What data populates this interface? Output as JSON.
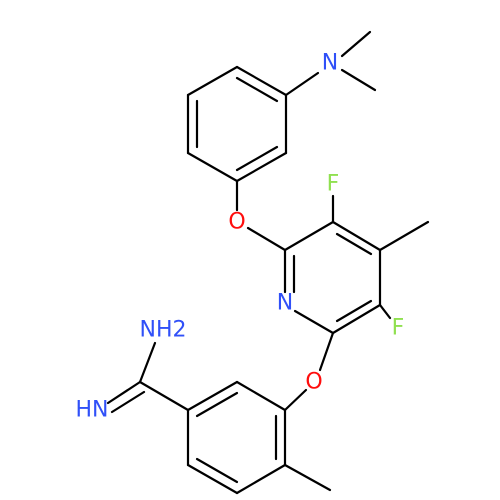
{
  "atoms": [
    {
      "label": "N"
    },
    {
      "label": "O"
    },
    {
      "label": "F"
    },
    {
      "label": "N"
    },
    {
      "label": "F"
    },
    {
      "label": "O"
    },
    {
      "label": "NH2"
    },
    {
      "label": "HN"
    }
  ]
}
